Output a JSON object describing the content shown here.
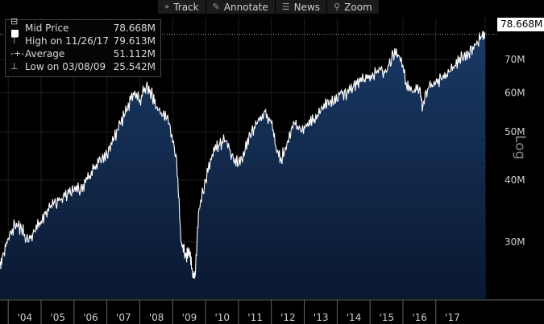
{
  "toolbar": {
    "buttons": [
      {
        "label": "Track",
        "icon": "crosshair-icon",
        "glyph": "⌖"
      },
      {
        "label": "Annotate",
        "icon": "pencil-icon",
        "glyph": "✎"
      },
      {
        "label": "News",
        "icon": "news-icon",
        "glyph": "☰"
      },
      {
        "label": "Zoom",
        "icon": "magnifier-icon",
        "glyph": "⚲"
      }
    ]
  },
  "legend": {
    "rows": [
      {
        "label": "Mid Price",
        "value": "78.668M"
      },
      {
        "label": "High on 11/26/17",
        "value": "79.613M"
      },
      {
        "label": "Average",
        "value": "51.112M"
      },
      {
        "label": "Low on 03/08/09",
        "value": "25.542M"
      }
    ]
  },
  "last_value_badge": "78.668M",
  "colors": {
    "line": "#ffffff",
    "fill_top": "#1a3a66",
    "fill_bottom": "#0a1830",
    "background": "#000000",
    "grid": "#1f1f1f"
  },
  "chart_data": {
    "type": "area",
    "yscale": "log",
    "ylabel": "Log",
    "ylim": [
      23,
      85
    ],
    "yticks": [
      30,
      40,
      50,
      60,
      70
    ],
    "ytick_labels": [
      "30M",
      "40M",
      "50M",
      "60M",
      "70M"
    ],
    "xlim": [
      2003.25,
      2018.0
    ],
    "xticks": [
      2004,
      2005,
      2006,
      2007,
      2008,
      2009,
      2010,
      2011,
      2012,
      2013,
      2014,
      2015,
      2016,
      2017
    ],
    "xtick_labels": [
      "'04",
      "'05",
      "'06",
      "'07",
      "'08",
      "'09",
      "'10",
      "'11",
      "'12",
      "'13",
      "'14",
      "'15",
      "'16",
      "'17"
    ],
    "series": [
      {
        "x": [
          2003.25,
          2003.35,
          2003.5,
          2003.7,
          2003.9,
          2004.1,
          2004.3,
          2004.5,
          2004.7,
          2004.9,
          2005.1,
          2005.3,
          2005.5,
          2005.7,
          2005.9,
          2006.1,
          2006.3,
          2006.5,
          2006.7,
          2006.9,
          2007.1,
          2007.3,
          2007.5,
          2007.7,
          2007.85,
          2008.0,
          2008.2,
          2008.4,
          2008.6,
          2008.75,
          2008.9,
          2009.0,
          2009.1,
          2009.18,
          2009.3,
          2009.5,
          2009.7,
          2009.9,
          2010.1,
          2010.3,
          2010.5,
          2010.7,
          2010.9,
          2011.1,
          2011.3,
          2011.5,
          2011.65,
          2011.8,
          2012.0,
          2012.2,
          2012.4,
          2012.6,
          2012.8,
          2013.0,
          2013.2,
          2013.4,
          2013.6,
          2013.8,
          2014.0,
          2014.2,
          2014.4,
          2014.6,
          2014.8,
          2015.0,
          2015.2,
          2015.4,
          2015.6,
          2015.8,
          2016.0,
          2016.1,
          2016.3,
          2016.5,
          2016.7,
          2016.9,
          2017.1,
          2017.3,
          2017.5,
          2017.7,
          2017.9,
          2018.0
        ],
        "y": [
          27,
          28.5,
          30.5,
          32.5,
          32,
          30,
          31.5,
          33,
          35,
          36,
          36.5,
          37.5,
          38,
          38.5,
          40,
          42,
          44,
          45,
          48,
          52,
          55,
          60,
          58,
          62,
          60,
          56,
          54,
          52,
          45,
          30,
          28,
          29,
          26,
          25.5,
          35,
          40,
          45,
          47,
          48,
          45,
          43,
          46,
          50,
          53,
          55,
          52,
          46,
          44,
          48,
          52,
          50,
          52,
          53,
          55,
          58,
          57,
          60,
          60,
          62,
          63,
          64,
          65,
          67,
          66,
          72,
          71,
          63,
          60,
          61,
          56,
          62,
          63,
          64,
          66,
          68,
          71,
          72,
          75,
          78,
          78.7
        ]
      }
    ]
  }
}
